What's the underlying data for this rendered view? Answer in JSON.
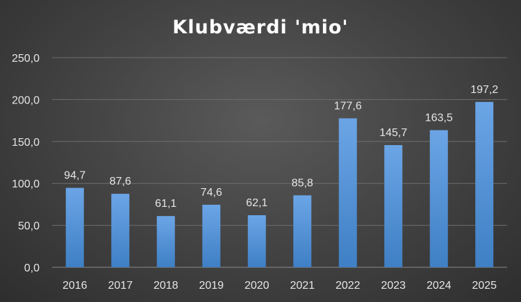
{
  "chart_data": {
    "type": "bar",
    "title": "Klubværdi 'mio'",
    "categories": [
      "2016",
      "2017",
      "2018",
      "2019",
      "2020",
      "2021",
      "2022",
      "2023",
      "2024",
      "2025"
    ],
    "values": [
      94.7,
      87.6,
      61.1,
      74.6,
      62.1,
      85.8,
      177.6,
      145.7,
      163.5,
      197.2
    ],
    "value_labels": [
      "94,7",
      "87,6",
      "61,1",
      "74,6",
      "62,1",
      "85,8",
      "177,6",
      "145,7",
      "163,5",
      "197,2"
    ],
    "y_ticks": [
      "0,0",
      "50,0",
      "100,0",
      "150,0",
      "200,0",
      "250,0"
    ],
    "ylim": [
      0,
      250
    ],
    "grid": true,
    "legend": "none",
    "xlabel": "",
    "ylabel": "",
    "colors": {
      "bar_top": "#6ba5e6",
      "bar_bottom": "#3f7fc4",
      "grid": "#6e6e6e",
      "text": "#e6e6e6"
    }
  }
}
